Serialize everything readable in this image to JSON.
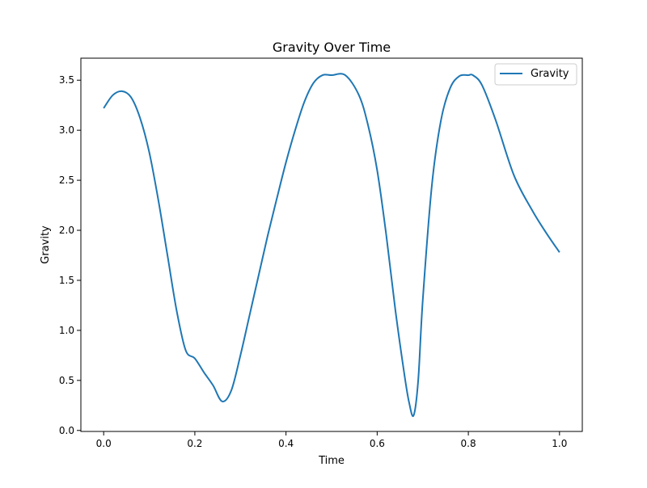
{
  "chart_data": {
    "type": "line",
    "title": "Gravity Over Time",
    "xlabel": "Time",
    "ylabel": "Gravity",
    "xlim": [
      -0.05,
      1.05
    ],
    "ylim": [
      -0.01,
      3.72
    ],
    "xticks": [
      0.0,
      0.2,
      0.4,
      0.6,
      0.8,
      1.0
    ],
    "xtick_labels": [
      "0.0",
      "0.2",
      "0.4",
      "0.6",
      "0.8",
      "1.0"
    ],
    "yticks": [
      0.0,
      0.5,
      1.0,
      1.5,
      2.0,
      2.5,
      3.0,
      3.5
    ],
    "ytick_labels": [
      "0.0",
      "0.5",
      "1.0",
      "1.5",
      "2.0",
      "2.5",
      "3.0",
      "3.5"
    ],
    "grid": false,
    "legend_position": "top-right",
    "series": [
      {
        "name": "Gravity",
        "color": "#1f77b4",
        "x": [
          0.0,
          0.02,
          0.04,
          0.06,
          0.08,
          0.1,
          0.12,
          0.14,
          0.16,
          0.18,
          0.2,
          0.22,
          0.24,
          0.26,
          0.28,
          0.3,
          0.32,
          0.34,
          0.36,
          0.38,
          0.4,
          0.42,
          0.44,
          0.46,
          0.48,
          0.5,
          0.53,
          0.56,
          0.58,
          0.6,
          0.62,
          0.64,
          0.66,
          0.67,
          0.68,
          0.69,
          0.7,
          0.72,
          0.74,
          0.76,
          0.78,
          0.8,
          0.81,
          0.83,
          0.86,
          0.9,
          0.94,
          0.97,
          1.0
        ],
        "y": [
          3.22,
          3.35,
          3.39,
          3.33,
          3.12,
          2.78,
          2.3,
          1.75,
          1.2,
          0.8,
          0.72,
          0.58,
          0.45,
          0.29,
          0.4,
          0.75,
          1.15,
          1.55,
          1.95,
          2.32,
          2.68,
          3.0,
          3.28,
          3.47,
          3.55,
          3.55,
          3.55,
          3.35,
          3.05,
          2.6,
          1.95,
          1.2,
          0.55,
          0.28,
          0.15,
          0.5,
          1.3,
          2.45,
          3.1,
          3.42,
          3.54,
          3.55,
          3.55,
          3.45,
          3.1,
          2.55,
          2.2,
          1.98,
          1.78
        ]
      }
    ]
  }
}
